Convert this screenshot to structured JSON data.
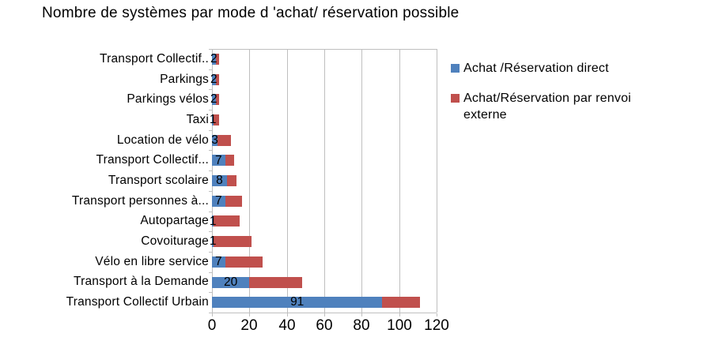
{
  "chart_data": {
    "type": "bar",
    "orientation": "horizontal",
    "stacked": true,
    "title": "Nombre de systèmes par mode d 'achat/ réservation possible",
    "categories": [
      "Transport Collectif..",
      "Parkings",
      "Parkings vélos",
      "Taxi",
      "Location de vélo",
      "Transport Collectif...",
      "Transport scolaire",
      "Transport personnes à...",
      "Autopartage",
      "Covoiturage",
      "Vélo en libre service",
      "Transport à la Demande",
      "Transport Collectif Urbain"
    ],
    "series": [
      {
        "name": "Achat /Réservation direct",
        "color": "#4F81BD",
        "values": [
          2,
          2,
          2,
          1,
          3,
          7,
          8,
          7,
          1,
          1,
          7,
          20,
          91
        ],
        "data_labels_visible": true
      },
      {
        "name": "Achat/Réservation par renvoi externe",
        "color": "#C0504D",
        "values": [
          2,
          2,
          2,
          3,
          7,
          5,
          5,
          9,
          14,
          20,
          20,
          28,
          20
        ],
        "data_labels_visible": false
      }
    ],
    "xlim": [
      0,
      120
    ],
    "x_ticks": [
      0,
      20,
      40,
      60,
      80,
      100,
      120
    ],
    "grid": "vertical gridlines",
    "legend_position": "right",
    "axis_color": "#BFBFBF",
    "text_color": "#000000",
    "background_color": "#FFFFFF"
  }
}
